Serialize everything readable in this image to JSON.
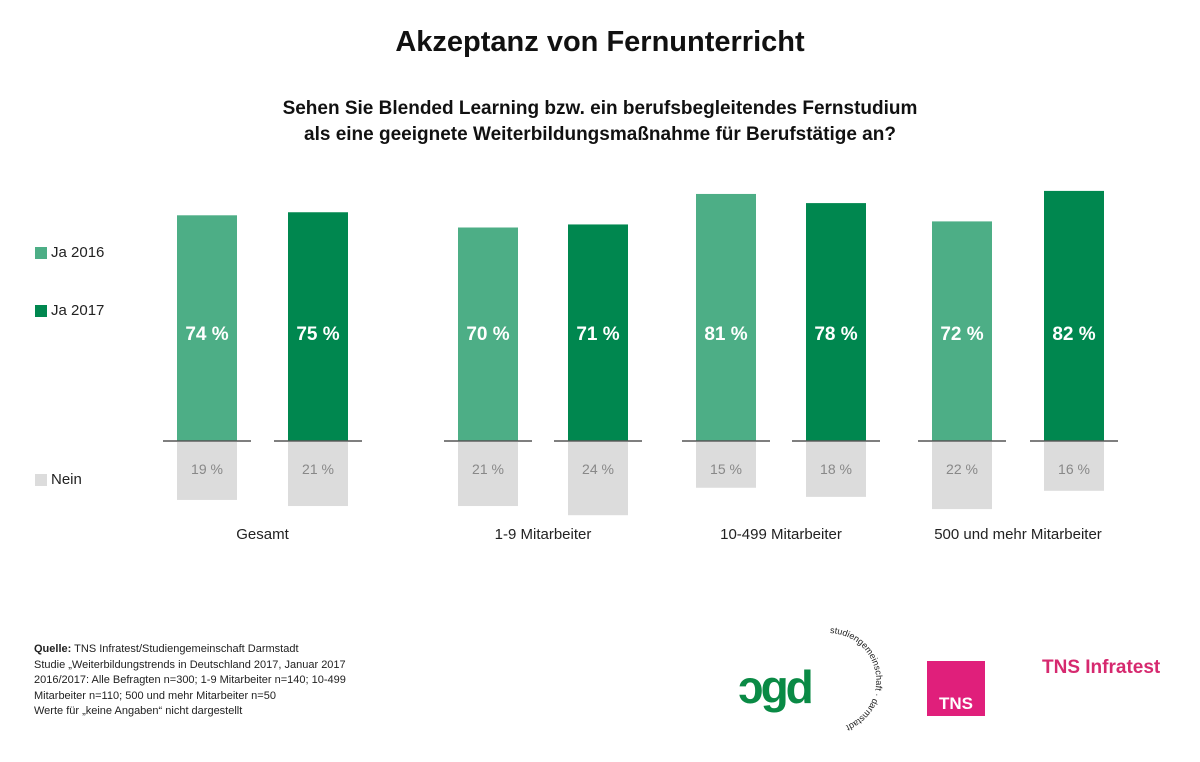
{
  "chart_data": {
    "type": "bar",
    "title": "Akzeptanz von Fernunterricht",
    "subtitle": [
      "Sehen Sie Blended Learning bzw. ein berufsbegleitendes Fernstudium",
      "als eine geeignete Weiterbildungsmaßnahme für Berufstätige an?"
    ],
    "categories": [
      "Gesamt",
      "1-9 Mitarbeiter",
      "10-499 Mitarbeiter",
      "500 und mehr Mitarbeiter"
    ],
    "series": [
      {
        "name": "Ja 2016",
        "color": "#4dae86",
        "values": [
          74,
          70,
          81,
          72
        ]
      },
      {
        "name": "Ja 2017",
        "color": "#00874f",
        "values": [
          75,
          71,
          78,
          82
        ]
      }
    ],
    "nein": {
      "name": "Nein",
      "color": "#dcdcdc",
      "values_2016": [
        19,
        21,
        15,
        22
      ],
      "values_2017": [
        21,
        24,
        18,
        16
      ]
    },
    "unit": " %",
    "grid": false,
    "legend": "left"
  },
  "source": {
    "label": "Quelle:",
    "lines": [
      "TNS Infratest/Studiengemeinschaft Darmstadt",
      "Studie „Weiterbildungstrends in Deutschland 2017, Januar 2017",
      "2016/2017: Alle Befragten n=300; 1-9 Mitarbeiter n=140; 10-499",
      "Mitarbeiter n=110; 500 und mehr Mitarbeiter n=50",
      "Werte für „keine Angaben“ nicht dargestellt"
    ]
  },
  "logos": {
    "sgd": "sgd",
    "sgd_ring": "studiengemeinschaft · darmstadt",
    "tns": "TNS",
    "tns_infratest": "TNS Infratest"
  }
}
